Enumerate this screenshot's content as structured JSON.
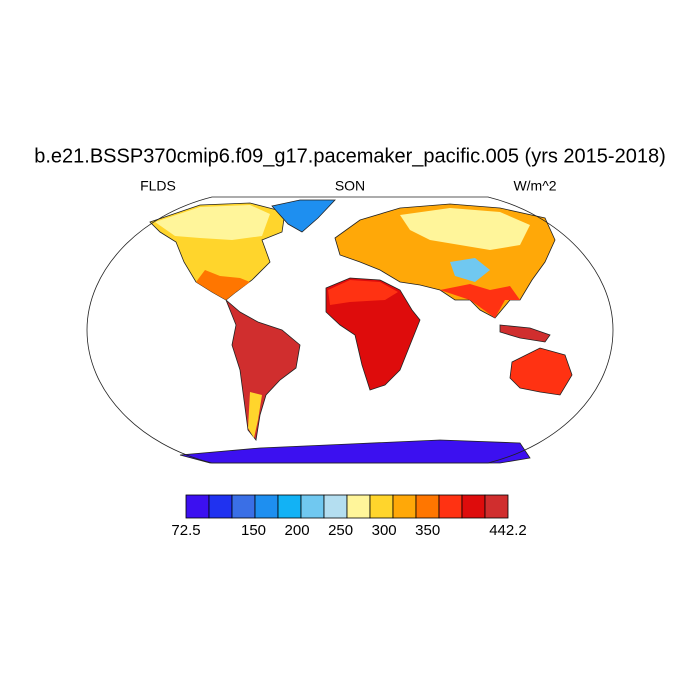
{
  "title": "b.e21.BSSP370cmip6.f09_g17.pacemaker_pacific.005 (yrs 2015-2018)",
  "labels": {
    "left": "FLDS",
    "center": "SON",
    "right": "W/m^2"
  },
  "colorbar": {
    "colors": [
      "#3c10f0",
      "#2032f0",
      "#3a6fe6",
      "#1e8ff0",
      "#12b2f5",
      "#70c8f0",
      "#b4def0",
      "#fff59a",
      "#ffd52c",
      "#ffa808",
      "#ff7600",
      "#ff3212",
      "#de0c0c",
      "#d02e2e"
    ],
    "ticks": [
      72.5,
      150,
      200,
      250,
      300,
      350,
      442.2
    ]
  }
}
